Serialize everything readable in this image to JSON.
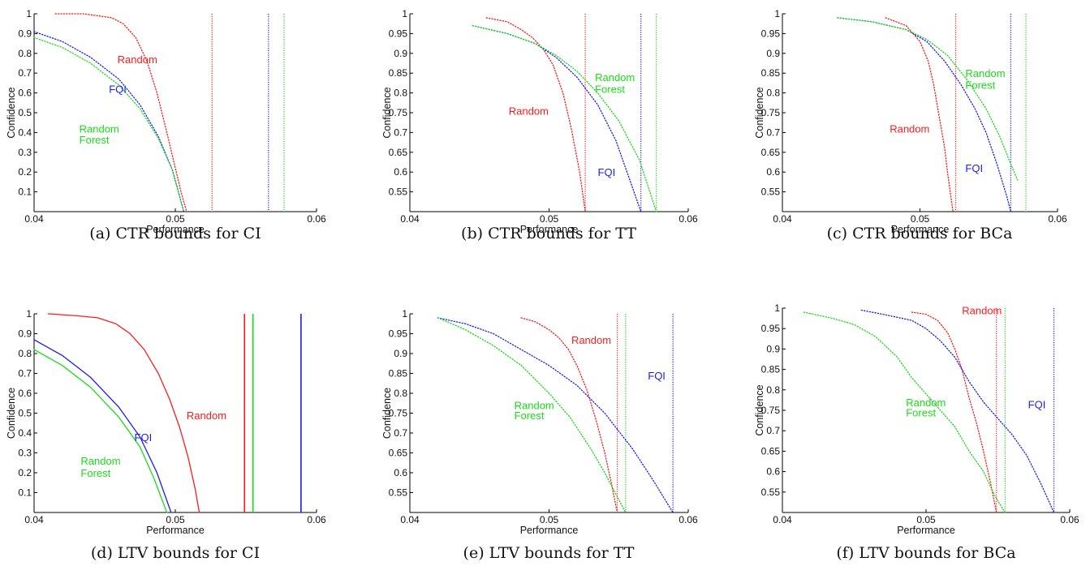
{
  "colors": {
    "Random": "#ff1a1a",
    "FQI": "#1a1aff",
    "Random Forest": "#1adb1a"
  },
  "chart_data": [
    {
      "type": "line",
      "caption": "(a) CTR bounds for CI",
      "xlabel": "Performance",
      "ylabel": "Confidence",
      "xlim": [
        0.04,
        0.06
      ],
      "ylim": [
        0.0,
        1.0
      ],
      "xticks": [
        0.04,
        0.05,
        0.06
      ],
      "xtick_labels": [
        "0.04",
        "0.05",
        "0.06"
      ],
      "yticks": [
        0.1,
        0.2,
        0.3,
        0.4,
        0.5,
        0.6,
        0.7,
        0.8,
        0.9,
        1.0
      ],
      "ytick_labels": [
        "0.1",
        "0.2",
        "0.3",
        "0.4",
        "0.5",
        "0.6",
        "0.7",
        "0.8",
        "0.9",
        "1"
      ],
      "line_style": "dotted",
      "series": [
        {
          "name": "Random",
          "x": [
            0.0415,
            0.0435,
            0.0445,
            0.0455,
            0.0463,
            0.0472,
            0.048,
            0.0487,
            0.0494,
            0.0499,
            0.0504,
            0.0508
          ],
          "y": [
            1.0,
            1.0,
            0.99,
            0.98,
            0.95,
            0.88,
            0.76,
            0.6,
            0.4,
            0.25,
            0.1,
            0.0
          ]
        },
        {
          "name": "FQI",
          "x": [
            0.04,
            0.042,
            0.044,
            0.046,
            0.0475,
            0.0488,
            0.0498,
            0.0506
          ],
          "y": [
            0.91,
            0.86,
            0.78,
            0.67,
            0.54,
            0.38,
            0.21,
            0.0
          ]
        },
        {
          "name": "Random Forest",
          "x": [
            0.04,
            0.042,
            0.044,
            0.046,
            0.0475,
            0.0488,
            0.0498,
            0.0506
          ],
          "y": [
            0.88,
            0.83,
            0.75,
            0.64,
            0.52,
            0.37,
            0.21,
            0.0
          ]
        }
      ],
      "vlines": [
        {
          "series": "Random",
          "x": 0.0526
        },
        {
          "series": "FQI",
          "x": 0.0566
        },
        {
          "series": "Random Forest",
          "x": 0.0577
        }
      ],
      "annotations": [
        {
          "series": "Random",
          "text": "Random",
          "x": 0.0459,
          "y": 0.75
        },
        {
          "series": "FQI",
          "text": "FQI",
          "x": 0.0453,
          "y": 0.6
        },
        {
          "series": "Random Forest",
          "text": "Random",
          "x": 0.0432,
          "y": 0.4
        },
        {
          "series": "Random Forest",
          "text": "Forest",
          "x": 0.0432,
          "y": 0.345
        }
      ]
    },
    {
      "type": "line",
      "caption": "(b) CTR bounds for TT",
      "xlabel": "Performance",
      "ylabel": "Confidence",
      "xlim": [
        0.04,
        0.06
      ],
      "ylim": [
        0.5,
        1.0
      ],
      "xticks": [
        0.04,
        0.05,
        0.06
      ],
      "xtick_labels": [
        "0.04",
        "0.05",
        "0.06"
      ],
      "yticks": [
        0.55,
        0.6,
        0.65,
        0.7,
        0.75,
        0.8,
        0.85,
        0.9,
        0.95,
        1.0
      ],
      "ytick_labels": [
        "0.55",
        "0.6",
        "0.65",
        "0.7",
        "0.75",
        "0.8",
        "0.85",
        "0.9",
        "0.95",
        "1"
      ],
      "line_style": "dotted",
      "series": [
        {
          "name": "Random",
          "x": [
            0.0455,
            0.047,
            0.048,
            0.0488,
            0.0496,
            0.0503,
            0.051,
            0.0516,
            0.0522,
            0.0526
          ],
          "y": [
            0.99,
            0.98,
            0.96,
            0.94,
            0.91,
            0.87,
            0.8,
            0.71,
            0.6,
            0.5
          ]
        },
        {
          "name": "FQI",
          "x": [
            0.0445,
            0.047,
            0.049,
            0.0505,
            0.052,
            0.0535,
            0.0548,
            0.0558,
            0.0566
          ],
          "y": [
            0.97,
            0.95,
            0.925,
            0.89,
            0.84,
            0.77,
            0.68,
            0.58,
            0.5
          ]
        },
        {
          "name": "Random Forest",
          "x": [
            0.0445,
            0.047,
            0.049,
            0.0505,
            0.052,
            0.0535,
            0.055,
            0.0565,
            0.0577
          ],
          "y": [
            0.97,
            0.95,
            0.925,
            0.895,
            0.855,
            0.8,
            0.73,
            0.63,
            0.5
          ]
        }
      ],
      "vlines": [
        {
          "series": "Random",
          "x": 0.0526
        },
        {
          "series": "FQI",
          "x": 0.0566
        },
        {
          "series": "Random Forest",
          "x": 0.0577
        }
      ],
      "annotations": [
        {
          "series": "Random Forest",
          "text": "Random",
          "x": 0.0533,
          "y": 0.83
        },
        {
          "series": "Random Forest",
          "text": "Forest",
          "x": 0.0533,
          "y": 0.8
        },
        {
          "series": "Random",
          "text": "Random",
          "x": 0.0471,
          "y": 0.745
        },
        {
          "series": "FQI",
          "text": "FQI",
          "x": 0.0535,
          "y": 0.59
        }
      ]
    },
    {
      "type": "line",
      "caption": "(c) CTR bounds for BCa",
      "xlabel": "Performance",
      "ylabel": "Confidence",
      "xlim": [
        0.04,
        0.06
      ],
      "ylim": [
        0.5,
        1.0
      ],
      "xticks": [
        0.04,
        0.05,
        0.06
      ],
      "xtick_labels": [
        "0.04",
        "0.05",
        "0.06"
      ],
      "yticks": [
        0.55,
        0.6,
        0.65,
        0.7,
        0.75,
        0.8,
        0.85,
        0.9,
        0.95,
        1.0
      ],
      "ytick_labels": [
        "0.55",
        "0.6",
        "0.65",
        "0.7",
        "0.75",
        "0.8",
        "0.85",
        "0.9",
        "0.95",
        "1"
      ],
      "line_style": "dotted",
      "series": [
        {
          "name": "Random",
          "x": [
            0.0475,
            0.049,
            0.05,
            0.0506,
            0.051,
            0.0514,
            0.0518,
            0.052,
            0.0522,
            0.0524
          ],
          "y": [
            0.99,
            0.97,
            0.93,
            0.88,
            0.82,
            0.74,
            0.66,
            0.6,
            0.55,
            0.5
          ]
        },
        {
          "name": "FQI",
          "x": [
            0.044,
            0.0465,
            0.049,
            0.0505,
            0.0518,
            0.053,
            0.054,
            0.0548,
            0.0556,
            0.0563,
            0.0566
          ],
          "y": [
            0.99,
            0.98,
            0.96,
            0.93,
            0.88,
            0.82,
            0.76,
            0.7,
            0.62,
            0.54,
            0.5
          ]
        },
        {
          "name": "Random Forest",
          "x": [
            0.044,
            0.0465,
            0.049,
            0.0505,
            0.052,
            0.0535,
            0.0548,
            0.0558,
            0.0566,
            0.0571
          ],
          "y": [
            0.99,
            0.98,
            0.96,
            0.935,
            0.895,
            0.83,
            0.76,
            0.69,
            0.62,
            0.58
          ]
        }
      ],
      "vlines": [
        {
          "series": "Random",
          "x": 0.0526
        },
        {
          "series": "FQI",
          "x": 0.0566
        },
        {
          "series": "Random Forest",
          "x": 0.0577
        }
      ],
      "annotations": [
        {
          "series": "Random Forest",
          "text": "Random",
          "x": 0.0533,
          "y": 0.84
        },
        {
          "series": "Random Forest",
          "text": "Forest",
          "x": 0.0533,
          "y": 0.81
        },
        {
          "series": "Random",
          "text": "Random",
          "x": 0.0478,
          "y": 0.7
        },
        {
          "series": "FQI",
          "text": "FQI",
          "x": 0.0533,
          "y": 0.6
        }
      ]
    },
    {
      "type": "line",
      "caption": "(d) LTV bounds for CI",
      "xlabel": "Performance",
      "ylabel": "Confidence",
      "xlim": [
        0.04,
        0.06
      ],
      "ylim": [
        0.0,
        1.0
      ],
      "xticks": [
        0.04,
        0.05,
        0.06
      ],
      "xtick_labels": [
        "0.04",
        "0.05",
        "0.06"
      ],
      "yticks": [
        0.1,
        0.2,
        0.3,
        0.4,
        0.5,
        0.6,
        0.7,
        0.8,
        0.9,
        1.0
      ],
      "ytick_labels": [
        "0.1",
        "0.2",
        "0.3",
        "0.4",
        "0.5",
        "0.6",
        "0.7",
        "0.8",
        "0.9",
        "1"
      ],
      "series": [
        {
          "name": "Random",
          "x": [
            0.041,
            0.043,
            0.0445,
            0.0458,
            0.0468,
            0.0478,
            0.0488,
            0.0496,
            0.0503,
            0.0509,
            0.0514,
            0.0517
          ],
          "y": [
            1.0,
            0.99,
            0.98,
            0.95,
            0.9,
            0.82,
            0.7,
            0.57,
            0.43,
            0.28,
            0.12,
            0.0
          ]
        },
        {
          "name": "FQI",
          "x": [
            0.04,
            0.042,
            0.044,
            0.046,
            0.0475,
            0.0487,
            0.0497
          ],
          "y": [
            0.87,
            0.79,
            0.68,
            0.53,
            0.38,
            0.2,
            0.0
          ]
        },
        {
          "name": "Random Forest",
          "x": [
            0.04,
            0.042,
            0.044,
            0.046,
            0.0475,
            0.0485,
            0.0494
          ],
          "y": [
            0.82,
            0.74,
            0.63,
            0.48,
            0.33,
            0.17,
            0.0
          ]
        }
      ],
      "vlines": [
        {
          "series": "Random",
          "x": 0.0549
        },
        {
          "series": "Random Forest",
          "x": 0.0555
        },
        {
          "series": "FQI",
          "x": 0.0589
        }
      ],
      "annotations": [
        {
          "series": "Random",
          "text": "Random",
          "x": 0.0508,
          "y": 0.47
        },
        {
          "series": "FQI",
          "text": "FQI",
          "x": 0.0471,
          "y": 0.36
        },
        {
          "series": "Random Forest",
          "text": "Random",
          "x": 0.0433,
          "y": 0.24
        },
        {
          "series": "Random Forest",
          "text": "Forest",
          "x": 0.0433,
          "y": 0.18
        }
      ]
    },
    {
      "type": "line",
      "caption": "(e) LTV bounds for TT",
      "xlabel": "Performance",
      "ylabel": "Confidence",
      "xlim": [
        0.04,
        0.06
      ],
      "ylim": [
        0.5,
        1.0
      ],
      "xticks": [
        0.04,
        0.05,
        0.06
      ],
      "xtick_labels": [
        "0.04",
        "0.05",
        "0.06"
      ],
      "yticks": [
        0.55,
        0.6,
        0.65,
        0.7,
        0.75,
        0.8,
        0.85,
        0.9,
        0.95,
        1.0
      ],
      "ytick_labels": [
        "0.55",
        "0.6",
        "0.65",
        "0.7",
        "0.75",
        "0.8",
        "0.85",
        "0.9",
        "0.95",
        "1"
      ],
      "line_style": "dotted",
      "series": [
        {
          "name": "Random",
          "x": [
            0.048,
            0.049,
            0.05,
            0.0507,
            0.0514,
            0.052,
            0.0527,
            0.0534,
            0.054,
            0.0545,
            0.0549
          ],
          "y": [
            0.99,
            0.98,
            0.96,
            0.94,
            0.91,
            0.87,
            0.81,
            0.73,
            0.65,
            0.57,
            0.5
          ]
        },
        {
          "name": "FQI",
          "x": [
            0.042,
            0.044,
            0.046,
            0.048,
            0.05,
            0.052,
            0.054,
            0.056,
            0.0575,
            0.0589
          ],
          "y": [
            0.99,
            0.975,
            0.95,
            0.91,
            0.87,
            0.82,
            0.75,
            0.66,
            0.58,
            0.5
          ]
        },
        {
          "name": "Random Forest",
          "x": [
            0.042,
            0.044,
            0.046,
            0.048,
            0.05,
            0.0515,
            0.053,
            0.054,
            0.0549,
            0.0555
          ],
          "y": [
            0.99,
            0.96,
            0.92,
            0.87,
            0.8,
            0.74,
            0.66,
            0.6,
            0.54,
            0.5
          ]
        }
      ],
      "vlines": [
        {
          "series": "Random",
          "x": 0.0549
        },
        {
          "series": "Random Forest",
          "x": 0.0555
        },
        {
          "series": "FQI",
          "x": 0.0589
        }
      ],
      "annotations": [
        {
          "series": "Random",
          "text": "Random",
          "x": 0.0516,
          "y": 0.925
        },
        {
          "series": "FQI",
          "text": "FQI",
          "x": 0.0571,
          "y": 0.835
        },
        {
          "series": "Random Forest",
          "text": "Random",
          "x": 0.0475,
          "y": 0.76
        },
        {
          "series": "Random Forest",
          "text": "Forest",
          "x": 0.0475,
          "y": 0.735
        }
      ]
    },
    {
      "type": "line",
      "caption": "(f) LTV bounds for BCa",
      "xlabel": "Performance",
      "ylabel": "Confidence",
      "xlim": [
        0.04,
        0.06
      ],
      "ylim": [
        0.5,
        1.0
      ],
      "xticks": [
        0.04,
        0.05,
        0.06
      ],
      "xtick_labels": [
        "0.04",
        "0.05",
        "0.06"
      ],
      "yticks": [
        0.55,
        0.6,
        0.65,
        0.7,
        0.75,
        0.8,
        0.85,
        0.9,
        0.95,
        1.0
      ],
      "ytick_labels": [
        "0.55",
        "0.6",
        "0.65",
        "0.7",
        "0.75",
        "0.8",
        "0.85",
        "0.9",
        "0.95",
        "1"
      ],
      "line_style": "dotted",
      "series": [
        {
          "name": "Random",
          "x": [
            0.049,
            0.05,
            0.0508,
            0.0515,
            0.052,
            0.0525,
            0.053,
            0.0535,
            0.054,
            0.0545,
            0.0549
          ],
          "y": [
            0.99,
            0.985,
            0.97,
            0.94,
            0.9,
            0.85,
            0.78,
            0.72,
            0.65,
            0.57,
            0.5
          ]
        },
        {
          "name": "FQI",
          "x": [
            0.0455,
            0.047,
            0.049,
            0.05,
            0.051,
            0.052,
            0.053,
            0.054,
            0.055,
            0.056,
            0.057,
            0.058,
            0.0589
          ],
          "y": [
            0.995,
            0.985,
            0.97,
            0.95,
            0.92,
            0.88,
            0.82,
            0.77,
            0.73,
            0.69,
            0.64,
            0.57,
            0.5
          ]
        },
        {
          "name": "Random Forest",
          "x": [
            0.0415,
            0.0435,
            0.045,
            0.0465,
            0.048,
            0.049,
            0.0505,
            0.052,
            0.053,
            0.054,
            0.0548,
            0.0555
          ],
          "y": [
            0.99,
            0.975,
            0.96,
            0.93,
            0.88,
            0.83,
            0.77,
            0.71,
            0.65,
            0.6,
            0.54,
            0.5
          ]
        }
      ],
      "vlines": [
        {
          "series": "Random",
          "x": 0.0549
        },
        {
          "series": "Random Forest",
          "x": 0.0555
        },
        {
          "series": "FQI",
          "x": 0.0589
        }
      ],
      "annotations": [
        {
          "series": "Random",
          "text": "Random",
          "x": 0.0525,
          "y": 0.985
        },
        {
          "series": "Random Forest",
          "text": "Random",
          "x": 0.0486,
          "y": 0.76
        },
        {
          "series": "Random Forest",
          "text": "Forest",
          "x": 0.0486,
          "y": 0.735
        },
        {
          "series": "FQI",
          "text": "FQI",
          "x": 0.0571,
          "y": 0.755
        }
      ]
    }
  ]
}
